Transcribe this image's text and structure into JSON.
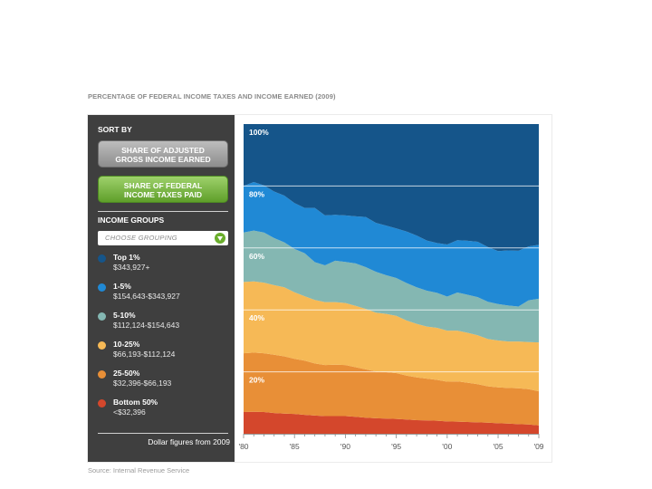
{
  "title": "PERCENTAGE OF FEDERAL INCOME TAXES AND INCOME EARNED (2009)",
  "source": "Source: Internal Revenue Service",
  "sidebar": {
    "sort_by_label": "SORT BY",
    "buttons": [
      {
        "line1": "SHARE OF ADJUSTED",
        "line2": "GROSS INCOME EARNED",
        "selected": false
      },
      {
        "line1": "SHARE OF FEDERAL",
        "line2": "INCOME TAXES PAID",
        "selected": true
      }
    ],
    "income_groups_label": "INCOME GROUPS",
    "grouping_placeholder": "CHOOSE GROUPING",
    "legend": [
      {
        "name": "Top 1%",
        "range": "$343,927+",
        "color": "#15558a"
      },
      {
        "name": "1-5%",
        "range": "$154,643-$343,927",
        "color": "#2089d5"
      },
      {
        "name": "5-10%",
        "range": "$112,124-$154,643",
        "color": "#84b7b2"
      },
      {
        "name": "10-25%",
        "range": "$66,193-$112,124",
        "color": "#f6b956"
      },
      {
        "name": "25-50%",
        "range": "$32,396-$66,193",
        "color": "#e88f37"
      },
      {
        "name": "Bottom 50%",
        "range": "<$32,396",
        "color": "#d4472c"
      }
    ],
    "note": "Dollar figures from 2009"
  },
  "chart_data": {
    "type": "area",
    "stacked": true,
    "x": [
      1980,
      1981,
      1982,
      1983,
      1984,
      1985,
      1986,
      1987,
      1988,
      1989,
      1990,
      1991,
      1992,
      1993,
      1994,
      1995,
      1996,
      1997,
      1998,
      1999,
      2000,
      2001,
      2002,
      2003,
      2004,
      2005,
      2006,
      2007,
      2008,
      2009
    ],
    "xticks": [
      "'80",
      "'85",
      "'90",
      "'95",
      "'00",
      "'05",
      "'09"
    ],
    "xtick_values": [
      1980,
      1985,
      1990,
      1995,
      2000,
      2005,
      2009
    ],
    "yticks": [
      "20%",
      "40%",
      "60%",
      "80%",
      "100%"
    ],
    "ytick_values": [
      20,
      40,
      60,
      80,
      100
    ],
    "ylim": [
      0,
      100
    ],
    "grid": true,
    "series": [
      {
        "name": "Bottom 50%",
        "values": [
          7.0,
          7.1,
          7.0,
          6.7,
          6.5,
          6.4,
          6.1,
          5.9,
          5.7,
          5.7,
          5.7,
          5.5,
          5.2,
          5.0,
          4.9,
          4.8,
          4.6,
          4.4,
          4.3,
          4.2,
          4.0,
          3.9,
          3.8,
          3.7,
          3.6,
          3.4,
          3.3,
          3.1,
          3.0,
          2.7
        ]
      },
      {
        "name": "25-50%",
        "values": [
          19.0,
          19.1,
          19.0,
          18.8,
          18.5,
          17.8,
          17.5,
          16.8,
          16.5,
          16.6,
          16.5,
          16.0,
          15.6,
          15.1,
          15.0,
          14.8,
          14.2,
          13.8,
          13.5,
          13.2,
          12.8,
          13.0,
          12.7,
          12.3,
          11.7,
          11.6,
          11.5,
          11.6,
          11.4,
          11.0
        ]
      },
      {
        "name": "10-25%",
        "values": [
          23.0,
          23.0,
          22.8,
          22.5,
          22.3,
          21.5,
          20.8,
          20.5,
          20.3,
          20.2,
          20.0,
          19.8,
          19.5,
          19.0,
          18.8,
          18.5,
          17.8,
          17.3,
          16.8,
          16.8,
          16.5,
          16.4,
          16.1,
          15.8,
          15.3,
          15.1,
          15.0,
          15.1,
          15.2,
          15.8
        ]
      },
      {
        "name": "5-10%",
        "values": [
          16.0,
          16.4,
          16.2,
          15.2,
          14.5,
          14.0,
          13.9,
          12.2,
          11.9,
          13.4,
          13.3,
          13.7,
          13.5,
          13.2,
          12.5,
          12.2,
          12.1,
          11.8,
          11.6,
          11.3,
          11.0,
          12.3,
          12.3,
          12.3,
          12.0,
          11.8,
          11.6,
          11.3,
          13.5,
          14.1
        ]
      },
      {
        "name": "1-5%",
        "values": [
          15.0,
          15.7,
          15.2,
          15.0,
          15.1,
          14.8,
          14.6,
          17.5,
          16.1,
          14.8,
          15.0,
          15.2,
          16.2,
          15.8,
          16.0,
          16.0,
          16.6,
          16.7,
          16.2,
          16.1,
          16.8,
          16.9,
          17.4,
          17.9,
          17.7,
          17.1,
          17.8,
          18.0,
          17.4,
          17.4
        ]
      },
      {
        "name": "Top 1%",
        "values": [
          20.0,
          18.7,
          19.8,
          21.8,
          23.1,
          25.5,
          27.1,
          27.1,
          29.5,
          29.3,
          29.5,
          29.8,
          30.0,
          31.9,
          32.8,
          33.7,
          34.7,
          36.0,
          37.6,
          38.4,
          38.9,
          37.5,
          37.7,
          38.0,
          39.7,
          41.0,
          40.8,
          40.9,
          39.5,
          39.0
        ]
      }
    ]
  }
}
